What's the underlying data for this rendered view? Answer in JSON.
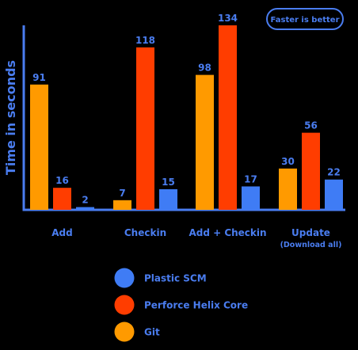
{
  "chart_data": {
    "type": "bar",
    "ylabel": "Time in seconds",
    "xlabel": "",
    "annotation": "Faster is better",
    "categories": [
      {
        "label": "Add",
        "sub": ""
      },
      {
        "label": "Checkin",
        "sub": ""
      },
      {
        "label": "Add + Checkin",
        "sub": ""
      },
      {
        "label": "Update",
        "sub": "(Download all)"
      }
    ],
    "series": [
      {
        "name": "Git",
        "color": "#ff9a00",
        "values": [
          91,
          7,
          98,
          30
        ]
      },
      {
        "name": "Perforce Helix Core",
        "color": "#ff3d00",
        "values": [
          16,
          118,
          134,
          56
        ]
      },
      {
        "name": "Plastic SCM",
        "color": "#3f7cf5",
        "values": [
          2,
          15,
          17,
          22
        ]
      }
    ],
    "legend_order": [
      "Plastic SCM",
      "Perforce Helix Core",
      "Git"
    ],
    "legend_placement": "bottom",
    "ylim": [
      0,
      134
    ],
    "grid": false,
    "axis_color": "#4a7df0",
    "label_color": "#4a7df0"
  }
}
